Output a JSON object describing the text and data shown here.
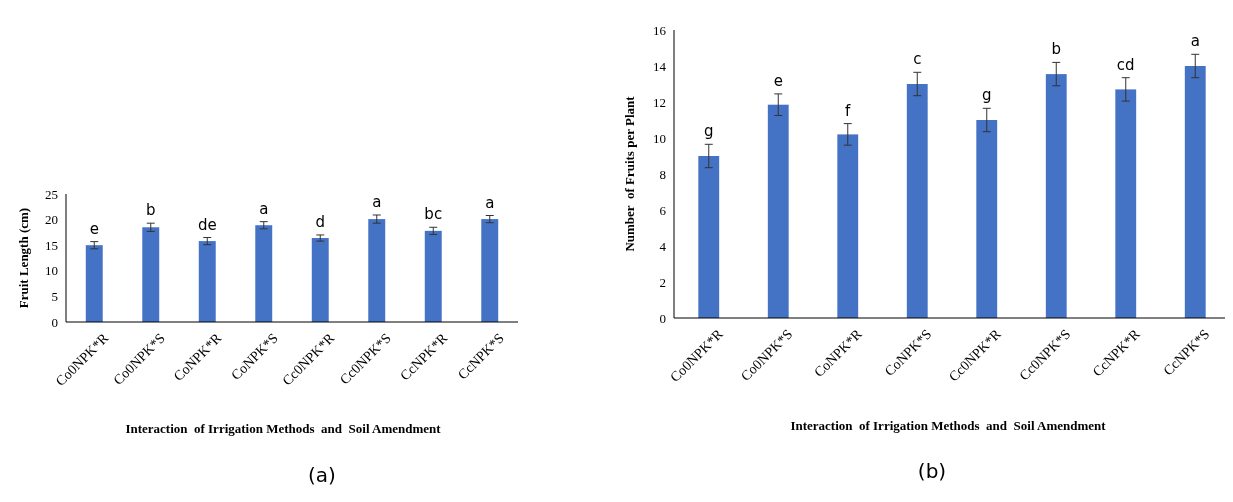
{
  "chart_data": [
    {
      "type": "bar",
      "ylabel": "Fruit Length (cm)",
      "xlabel": "Interaction  of Irrigation Methods  and  Soil Amendment",
      "categories": [
        "Co0NPK*R",
        "Co0NPK*S",
        "CoNPK*R",
        "CoNPK*S",
        "Cc0NPK*R",
        "Cc0NPK*S",
        "CcNPK*R",
        "CcNPK*S"
      ],
      "values": [
        15,
        18.5,
        15.8,
        18.9,
        16.4,
        20.1,
        17.8,
        20.1
      ],
      "errors": [
        0.7,
        0.8,
        0.7,
        0.7,
        0.6,
        0.8,
        0.7,
        0.7
      ],
      "color": "#4472c4",
      "ylim": [
        0,
        25
      ],
      "yticks": [
        0,
        5,
        10,
        15,
        20,
        25
      ],
      "annotations": [
        {
          "text": "e",
          "x": "Co0NPK*R",
          "y": 15
        },
        {
          "text": "b",
          "x": "Co0NPK*S",
          "y": 18.5
        },
        {
          "text": "de",
          "x": "CoNPK*R",
          "y": 15.8
        },
        {
          "text": "a",
          "x": "CoNPK*S",
          "y": 18.9
        },
        {
          "text": "d",
          "x": "Cc0NPK*R",
          "y": 16.4
        },
        {
          "text": "a",
          "x": "Cc0NPK*S",
          "y": 20.1
        },
        {
          "text": "bc",
          "x": "CcNPK*R",
          "y": 17.8
        },
        {
          "text": "a",
          "x": "CcNPK*S",
          "y": 20.1
        },
        "(a)"
      ]
    },
    {
      "type": "bar",
      "ylabel": "Number  of Fruits per Plant",
      "xlabel": "Interaction  of Irrigation Methods  and  Soil Amendment",
      "categories": [
        "Co0NPK*R",
        "Co0NPK*S",
        "CoNPK*R",
        "CoNPK*S",
        "Cc0NPK*R",
        "Cc0NPK*S",
        "CcNPK*R",
        "CcNPK*S"
      ],
      "values": [
        9,
        11.85,
        10.2,
        13,
        11,
        13.55,
        12.7,
        14
      ],
      "errors": [
        0.65,
        0.6,
        0.6,
        0.65,
        0.65,
        0.65,
        0.65,
        0.65
      ],
      "color": "#4472c4",
      "ylim": [
        0,
        16
      ],
      "yticks": [
        0,
        2,
        4,
        6,
        8,
        10,
        12,
        14,
        16
      ],
      "annotations": [
        {
          "text": "g",
          "x": "Co0NPK*R",
          "y": 9
        },
        {
          "text": "e",
          "x": "Co0NPK*S",
          "y": 11.85
        },
        {
          "text": "f",
          "x": "CoNPK*R",
          "y": 10.2
        },
        {
          "text": "c",
          "x": "CoNPK*S",
          "y": 13
        },
        {
          "text": "g",
          "x": "Cc0NPK*R",
          "y": 11
        },
        {
          "text": "b",
          "x": "Cc0NPK*S",
          "y": 13.55
        },
        {
          "text": "cd",
          "x": "CcNPK*R",
          "y": 12.7
        },
        {
          "text": "a",
          "x": "CcNPK*S",
          "y": 14
        },
        "(b)"
      ]
    }
  ]
}
